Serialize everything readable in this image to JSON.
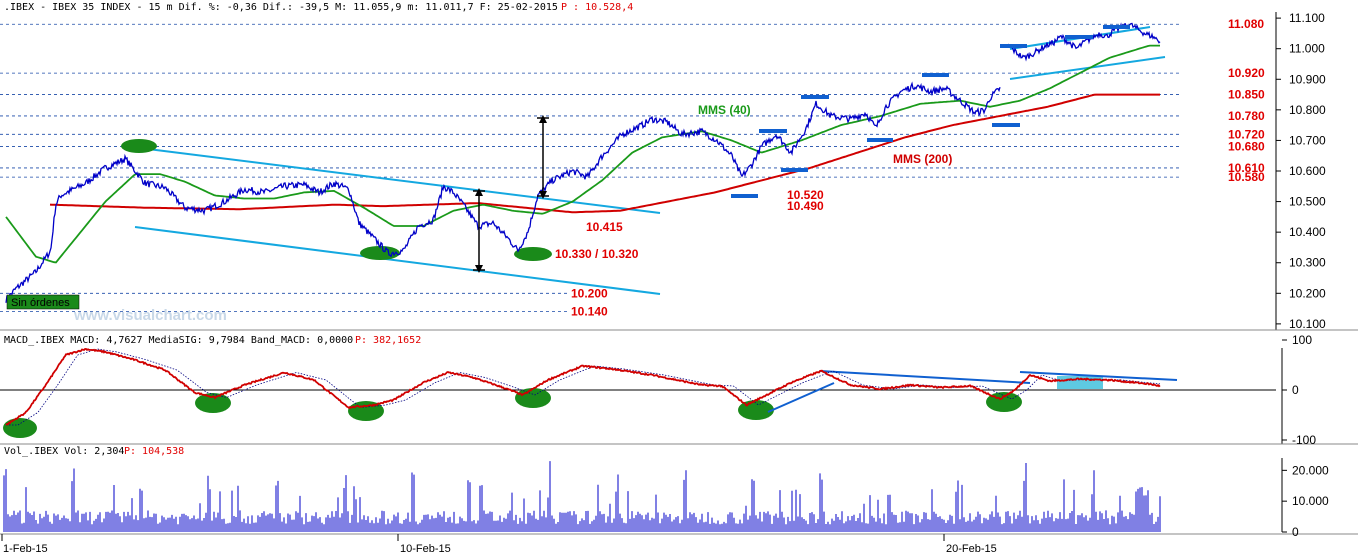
{
  "header": {
    "price_title": ".IBEX - IBEX 35 INDEX -  15 m Dif. %: -0,36 Dif.: -39,5 M: 11.055,9 m: 11.011,7 F: 25-02-2015",
    "price_last": "P : 10.528,4",
    "macd_title": "MACD_.IBEX MACD: 4,7627 MediaSIG: 9,7984 Band_MACD: 0,0000",
    "macd_last": "P: 382,1652",
    "vol_title": "Vol_.IBEX Vol: 2,304",
    "vol_last": "P: 104,538"
  },
  "watermark": "www.visualchart.com",
  "sin_ordenes": "Sin órdenes",
  "colors": {
    "price": "#0000c8",
    "mms40": "#1a9a1a",
    "mms200": "#d00000",
    "channel": "#14a8e0",
    "levels": "#e00000",
    "macd": "#d00000",
    "signal": "#000080",
    "ellipse": "#1a8a1a",
    "axis_text": "#000000"
  },
  "chart_data": [
    {
      "type": "line",
      "title": ".IBEX - IBEX 35 INDEX - 15 m",
      "ylim": [
        10080,
        11120
      ],
      "y_ticks": [
        "11.100",
        "11.000",
        "10.900",
        "10.800",
        "10.700",
        "10.600",
        "10.500",
        "10.400",
        "10.300",
        "10.200",
        "10.100"
      ],
      "x_labels": [
        "1-Feb-15",
        "10-Feb-15",
        "20-Feb-15"
      ],
      "price_anchors": [
        [
          0,
          10180
        ],
        [
          0.01,
          10215
        ],
        [
          0.03,
          10270
        ],
        [
          0.045,
          10340
        ],
        [
          0.05,
          10490
        ],
        [
          0.055,
          10520
        ],
        [
          0.08,
          10560
        ],
        [
          0.1,
          10610
        ],
        [
          0.12,
          10640
        ],
        [
          0.13,
          10600
        ],
        [
          0.14,
          10560
        ],
        [
          0.16,
          10545
        ],
        [
          0.18,
          10480
        ],
        [
          0.2,
          10470
        ],
        [
          0.22,
          10500
        ],
        [
          0.24,
          10540
        ],
        [
          0.26,
          10530
        ],
        [
          0.28,
          10550
        ],
        [
          0.3,
          10555
        ],
        [
          0.315,
          10530
        ],
        [
          0.33,
          10560
        ],
        [
          0.345,
          10540
        ],
        [
          0.355,
          10430
        ],
        [
          0.37,
          10380
        ],
        [
          0.385,
          10330
        ],
        [
          0.4,
          10340
        ],
        [
          0.415,
          10420
        ],
        [
          0.43,
          10440
        ],
        [
          0.44,
          10550
        ],
        [
          0.45,
          10530
        ],
        [
          0.46,
          10490
        ],
        [
          0.475,
          10420
        ],
        [
          0.49,
          10430
        ],
        [
          0.505,
          10380
        ],
        [
          0.515,
          10340
        ],
        [
          0.525,
          10400
        ],
        [
          0.535,
          10520
        ],
        [
          0.55,
          10570
        ],
        [
          0.57,
          10600
        ],
        [
          0.585,
          10580
        ],
        [
          0.6,
          10650
        ],
        [
          0.62,
          10720
        ],
        [
          0.64,
          10750
        ],
        [
          0.65,
          10770
        ],
        [
          0.665,
          10760
        ],
        [
          0.68,
          10720
        ],
        [
          0.7,
          10730
        ],
        [
          0.715,
          10700
        ],
        [
          0.73,
          10650
        ],
        [
          0.74,
          10580
        ],
        [
          0.75,
          10620
        ],
        [
          0.76,
          10680
        ],
        [
          0.775,
          10720
        ],
        [
          0.79,
          10660
        ],
        [
          0.805,
          10740
        ],
        [
          0.815,
          10820
        ],
        [
          0.83,
          10780
        ],
        [
          0.85,
          10770
        ],
        [
          0.865,
          10790
        ],
        [
          0.875,
          10740
        ],
        [
          0.885,
          10810
        ],
        [
          0.9,
          10860
        ],
        [
          0.915,
          10880
        ],
        [
          0.93,
          10860
        ],
        [
          0.945,
          10870
        ],
        [
          0.96,
          10830
        ],
        [
          0.975,
          10790
        ],
        [
          0.985,
          10800
        ],
        [
          0.99,
          10840
        ],
        [
          1.0,
          10870
        ]
      ],
      "price_anchors_2": [
        [
          0,
          11010
        ],
        [
          0.05,
          10990
        ],
        [
          0.1,
          10970
        ],
        [
          0.15,
          10980
        ],
        [
          0.2,
          10995
        ],
        [
          0.25,
          11010
        ],
        [
          0.3,
          11020
        ],
        [
          0.35,
          11040
        ],
        [
          0.4,
          11020
        ],
        [
          0.45,
          11000
        ],
        [
          0.5,
          11020
        ],
        [
          0.55,
          11035
        ],
        [
          0.6,
          11050
        ],
        [
          0.65,
          11040
        ],
        [
          0.7,
          11060
        ],
        [
          0.75,
          11070
        ],
        [
          0.8,
          11080
        ],
        [
          0.85,
          11065
        ],
        [
          0.9,
          11050
        ],
        [
          0.95,
          11040
        ],
        [
          1.0,
          11025
        ]
      ],
      "mms40_anchors": [
        [
          0,
          10450
        ],
        [
          0.03,
          10320
        ],
        [
          0.05,
          10300
        ],
        [
          0.07,
          10380
        ],
        [
          0.1,
          10500
        ],
        [
          0.13,
          10590
        ],
        [
          0.155,
          10590
        ],
        [
          0.18,
          10565
        ],
        [
          0.21,
          10520
        ],
        [
          0.24,
          10510
        ],
        [
          0.27,
          10510
        ],
        [
          0.3,
          10530
        ],
        [
          0.33,
          10535
        ],
        [
          0.36,
          10480
        ],
        [
          0.39,
          10420
        ],
        [
          0.42,
          10420
        ],
        [
          0.45,
          10470
        ],
        [
          0.48,
          10490
        ],
        [
          0.51,
          10470
        ],
        [
          0.54,
          10460
        ],
        [
          0.57,
          10500
        ],
        [
          0.6,
          10570
        ],
        [
          0.63,
          10660
        ],
        [
          0.66,
          10710
        ],
        [
          0.7,
          10730
        ],
        [
          0.73,
          10700
        ],
        [
          0.76,
          10660
        ],
        [
          0.8,
          10700
        ],
        [
          0.84,
          10750
        ],
        [
          0.88,
          10780
        ],
        [
          0.92,
          10820
        ],
        [
          0.96,
          10830
        ],
        [
          0.99,
          10810
        ],
        [
          1.02,
          10830
        ],
        [
          1.05,
          10870
        ],
        [
          1.08,
          10920
        ],
        [
          1.11,
          10970
        ],
        [
          1.15,
          11010
        ]
      ],
      "mms200_anchors": [
        [
          0,
          10490
        ],
        [
          0.1,
          10480
        ],
        [
          0.2,
          10475
        ],
        [
          0.3,
          10490
        ],
        [
          0.35,
          10485
        ],
        [
          0.4,
          10490
        ],
        [
          0.45,
          10495
        ],
        [
          0.5,
          10480
        ],
        [
          0.55,
          10465
        ],
        [
          0.6,
          10470
        ],
        [
          0.65,
          10500
        ],
        [
          0.7,
          10530
        ],
        [
          0.75,
          10570
        ],
        [
          0.8,
          10610
        ],
        [
          0.85,
          10660
        ],
        [
          0.9,
          10710
        ],
        [
          0.95,
          10750
        ],
        [
          1.0,
          10780
        ],
        [
          1.05,
          10810
        ],
        [
          1.1,
          10850
        ]
      ],
      "levels": [
        {
          "value": 11080,
          "label": "11.080"
        },
        {
          "value": 10920,
          "label": "10.920"
        },
        {
          "value": 10850,
          "label": "10.850"
        },
        {
          "value": 10780,
          "label": "10.780"
        },
        {
          "value": 10720,
          "label": "10.720"
        },
        {
          "value": 10680,
          "label": "10.680"
        },
        {
          "value": 10610,
          "label": "10.610"
        },
        {
          "value": 10580,
          "label": "10.580"
        },
        {
          "value": 10200,
          "label": "10.200"
        },
        {
          "value": 10140,
          "label": "10.140"
        }
      ],
      "annotations": [
        {
          "text": "MMS (40)",
          "color": "mms40"
        },
        {
          "text": "MMS (200)",
          "color": "mms200"
        },
        {
          "text": "10.520",
          "color": "levels"
        },
        {
          "text": "10.490",
          "color": "levels"
        },
        {
          "text": "10.415",
          "color": "levels"
        },
        {
          "text": "10.330 / 10.320",
          "color": "levels"
        }
      ]
    },
    {
      "type": "line",
      "title": "MACD_.IBEX",
      "ylim": [
        -100,
        100
      ],
      "y_ticks": [
        "100",
        "0",
        "-100"
      ],
      "macd_anchors": [
        [
          0,
          -70
        ],
        [
          0.02,
          -45
        ],
        [
          0.04,
          10
        ],
        [
          0.06,
          70
        ],
        [
          0.08,
          82
        ],
        [
          0.1,
          76
        ],
        [
          0.13,
          60
        ],
        [
          0.16,
          40
        ],
        [
          0.19,
          -5
        ],
        [
          0.21,
          -15
        ],
        [
          0.24,
          10
        ],
        [
          0.28,
          35
        ],
        [
          0.31,
          20
        ],
        [
          0.335,
          -20
        ],
        [
          0.345,
          -35
        ],
        [
          0.37,
          -30
        ],
        [
          0.39,
          -20
        ],
        [
          0.42,
          15
        ],
        [
          0.445,
          35
        ],
        [
          0.47,
          25
        ],
        [
          0.5,
          5
        ],
        [
          0.52,
          -10
        ],
        [
          0.545,
          20
        ],
        [
          0.58,
          48
        ],
        [
          0.61,
          42
        ],
        [
          0.65,
          30
        ],
        [
          0.7,
          10
        ],
        [
          0.72,
          8
        ],
        [
          0.745,
          -30
        ],
        [
          0.76,
          -15
        ],
        [
          0.79,
          15
        ],
        [
          0.82,
          38
        ],
        [
          0.85,
          10
        ],
        [
          0.88,
          2
        ],
        [
          0.91,
          10
        ],
        [
          0.94,
          5
        ],
        [
          0.97,
          8
        ],
        [
          0.985,
          -5
        ],
        [
          1.0,
          -18
        ],
        [
          1.015,
          0
        ],
        [
          1.03,
          30
        ],
        [
          1.05,
          18
        ],
        [
          1.08,
          22
        ],
        [
          1.11,
          20
        ],
        [
          1.15,
          12
        ],
        [
          1.17,
          5
        ]
      ],
      "signal_lag": 0.012
    },
    {
      "type": "bar",
      "title": "Vol_.IBEX",
      "ylim": [
        0,
        24000
      ],
      "y_ticks": [
        "20.000",
        "10.000",
        "0"
      ]
    }
  ]
}
